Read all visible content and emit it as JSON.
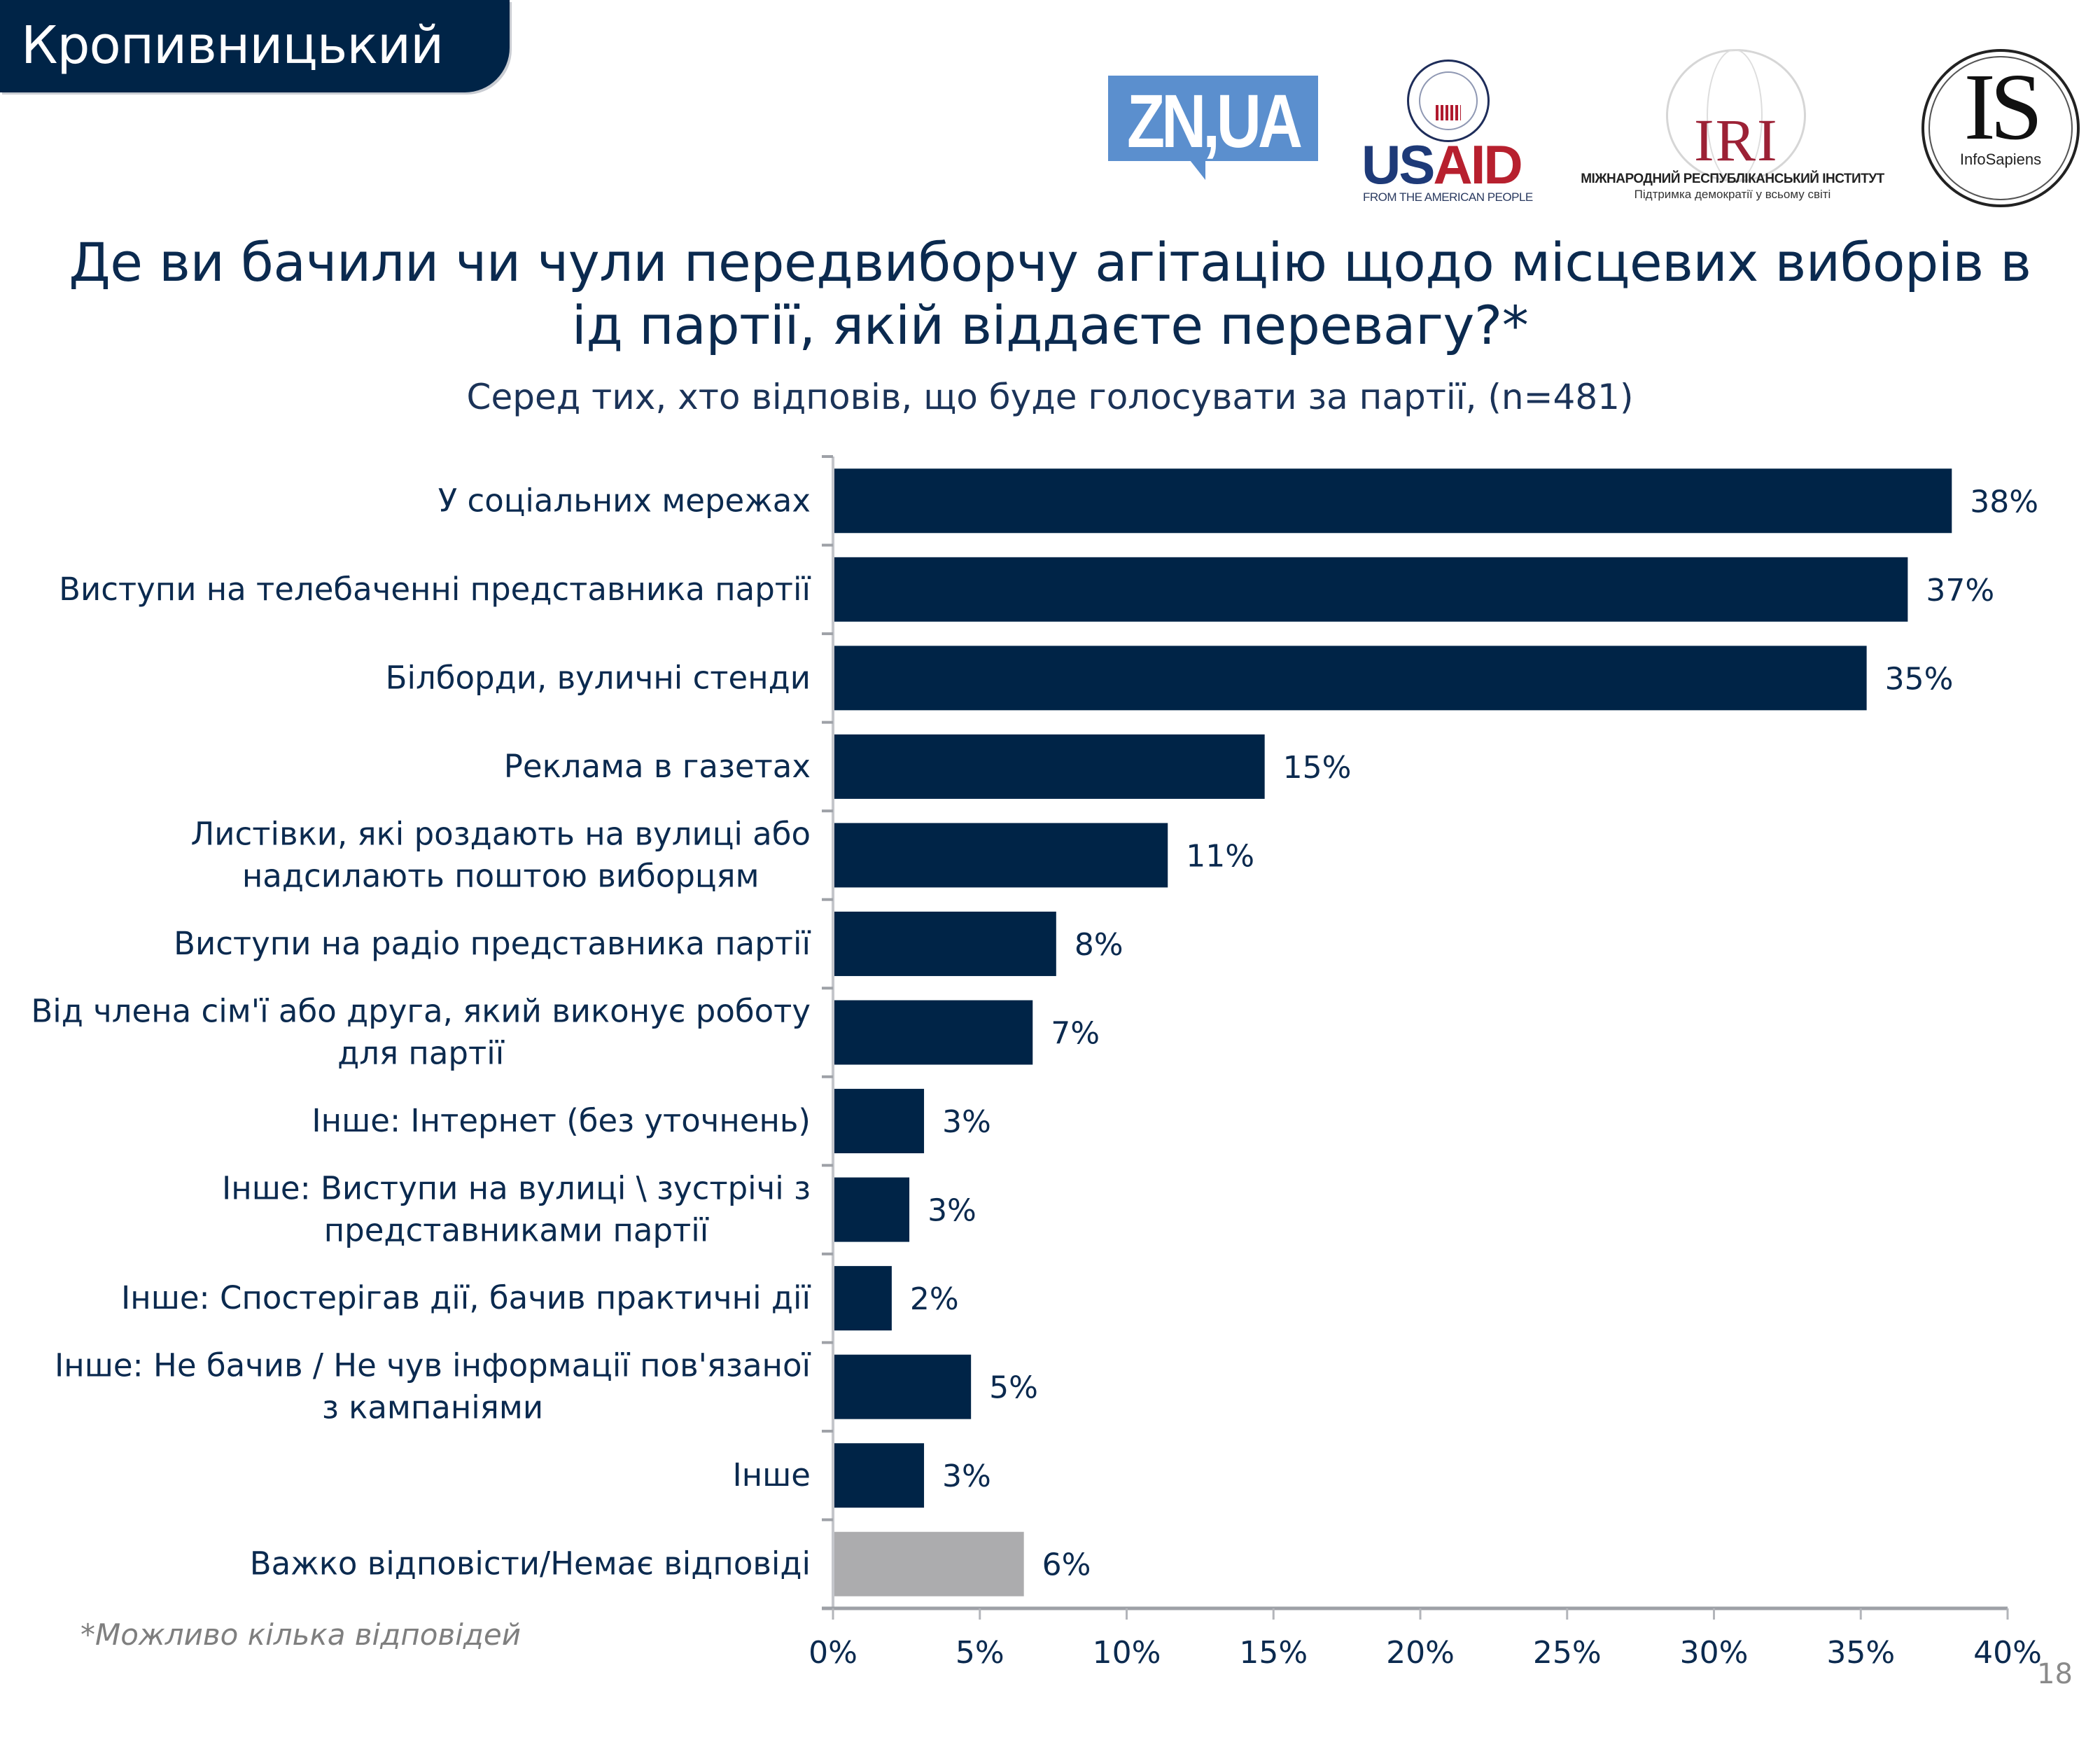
{
  "banner": {
    "city": "Кропивницький"
  },
  "logos": {
    "zn": "ZN,UA",
    "usaid_us": "US",
    "usaid_aid": "AID",
    "usaid_tagline": "FROM THE AMERICAN PEOPLE",
    "iri": "IRI",
    "iri_name": "МІЖНАРОДНИЙ РЕСПУБЛІКАНСЬКИЙ ІНСТИТУТ",
    "iri_tagline": "Підтримка демократії у всьому світі",
    "is": "IS",
    "is_name": "InfoSapiens"
  },
  "header": {
    "title_line1": "Де ви бачили чи чули передвиборчу агітацію щодо місцевих виборів в",
    "title_line2": "ід партії, якій віддаєте перевагу?*",
    "subtitle": "Серед тих, хто відповів, що буде голосувати за партії, (n=481)"
  },
  "footnote": "*Можливо кілька відповідей",
  "page_number": "18",
  "colors": {
    "bar": "#002447",
    "bar_no_answer": "#acacae",
    "text": "#0b2a4f",
    "axis": "#a6a8ad"
  },
  "chart_data": {
    "type": "bar",
    "orientation": "horizontal",
    "title": "Де ви бачили чи чули передвиборчу агітацію щодо місцевих виборів від партії, якій віддаєте перевагу?*",
    "subtitle": "Серед тих, хто відповів, що буде голосувати за партії, (n=481)",
    "xlabel": "",
    "ylabel": "",
    "xlim": [
      0,
      40
    ],
    "xticks": [
      0,
      5,
      10,
      15,
      20,
      25,
      30,
      35,
      40
    ],
    "xtick_labels": [
      "0%",
      "5%",
      "10%",
      "15%",
      "20%",
      "25%",
      "30%",
      "35%",
      "40%"
    ],
    "grid": false,
    "legend": "none",
    "categories": [
      [
        "У соціальних мережах"
      ],
      [
        "Виступи на телебаченні представника партії"
      ],
      [
        "Білборди, вуличні стенди"
      ],
      [
        "Реклама в газетах"
      ],
      [
        "Листівки, які роздають на вулиці або",
        "надсилають поштою виборцям"
      ],
      [
        "Виступи на радіо представника партії"
      ],
      [
        "Від члена сім'ї або друга, який виконує роботу",
        "для партії"
      ],
      [
        "Інше: Інтернет (без уточнень)"
      ],
      [
        "Інше: Виступи на вулиці \\ зустрічі з",
        "представниками партії"
      ],
      [
        "Інше: Спостерігав дії, бачив практичні дії"
      ],
      [
        "Інше: Не бачив / Не чув інформації пов'язаної",
        "з кампаніями"
      ],
      [
        "Інше"
      ],
      [
        "Важко відповісти/Немає відповіді"
      ]
    ],
    "values": [
      38.1,
      36.6,
      35.2,
      14.7,
      11.4,
      7.6,
      6.8,
      3.1,
      2.6,
      2.0,
      4.7,
      3.1,
      6.5
    ],
    "value_labels": [
      "38%",
      "37%",
      "35%",
      "15%",
      "11%",
      "8%",
      "7%",
      "3%",
      "3%",
      "2%",
      "5%",
      "3%",
      "6%"
    ],
    "highlight": [
      false,
      false,
      false,
      false,
      false,
      false,
      false,
      false,
      false,
      false,
      false,
      false,
      true
    ]
  }
}
